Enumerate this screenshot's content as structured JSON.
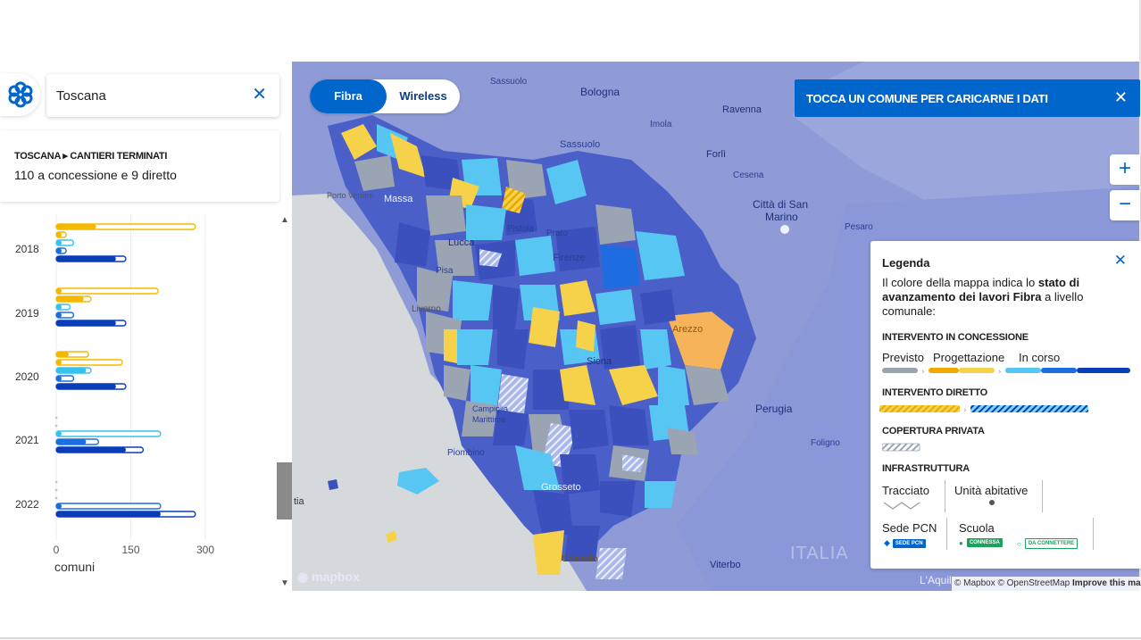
{
  "search": {
    "value": "Toscana",
    "clear_icon": "close-icon"
  },
  "info": {
    "breadcrumb": "TOSCANA ▸ CANTIERI TERMINATI",
    "summary": "110 a concessione e 9 diretto"
  },
  "chart_data": {
    "type": "bar",
    "orientation": "horizontal",
    "categories": [
      "2018",
      "2019",
      "2020",
      "2021",
      "2022"
    ],
    "x_ticks": [
      "0",
      "150",
      "300"
    ],
    "x_label": "comuni",
    "xlim": [
      0,
      300
    ],
    "series": [
      {
        "color": "#f5b800",
        "values": [
          [
            28,
            80,
            280
          ],
          [
            8,
            10,
            205
          ],
          [
            8,
            25,
            65
          ],
          [
            0,
            0,
            0
          ],
          [
            0,
            0,
            0
          ]
        ]
      },
      {
        "color": "#f5b800",
        "values": [
          [
            5,
            5,
            20
          ],
          [
            5,
            55,
            70
          ],
          [
            5,
            5,
            133
          ],
          [
            0,
            0,
            0
          ],
          [
            0,
            0,
            0
          ]
        ]
      },
      {
        "color": "#35c2ef",
        "values": [
          [
            5,
            10,
            35
          ],
          [
            5,
            5,
            28
          ],
          [
            5,
            60,
            70
          ],
          [
            5,
            10,
            210
          ],
          [
            0,
            0,
            0
          ]
        ]
      },
      {
        "color": "#1a6fe0",
        "values": [
          [
            5,
            5,
            20
          ],
          [
            5,
            5,
            35
          ],
          [
            5,
            10,
            35
          ],
          [
            5,
            60,
            85
          ],
          [
            5,
            5,
            210
          ]
        ]
      },
      {
        "color": "#0a3db8",
        "values": [
          [
            5,
            120,
            140
          ],
          [
            5,
            120,
            140
          ],
          [
            5,
            120,
            140
          ],
          [
            5,
            140,
            175
          ],
          [
            5,
            210,
            280
          ]
        ]
      }
    ],
    "grid": "vertical"
  },
  "toggle": {
    "fibra": "Fibra",
    "wireless": "Wireless",
    "selected": "Fibra"
  },
  "banner": {
    "text": "TOCCA UN COMUNE PER CARICARNE I DATI"
  },
  "zoom": {
    "in": "+",
    "out": "−"
  },
  "map": {
    "labels": [
      "Sassuolo",
      "Bologna",
      "Imola",
      "Ravenna",
      "Forlì",
      "Cesena",
      "Città di San",
      "Marino",
      "Pesaro",
      "Porto Venere",
      "Massa",
      "Lucca",
      "Pistoia",
      "Prato",
      "Firenze",
      "Pisa",
      "Livorno",
      "Arezzo",
      "Siena",
      "Perugia",
      "Foligno",
      "Campiglia",
      "Marittima",
      "Piombino",
      "Grosseto",
      "Orbetello",
      "Viterbo",
      "ITALIA",
      "tia",
      "L'Aquil"
    ],
    "brand": "mapbox",
    "attribution": "© Mapbox © OpenStreetMap",
    "improve": "Improve this map"
  },
  "legend": {
    "title": "Legenda",
    "desc_1": "Il colore della mappa indica lo ",
    "desc_bold": "stato di avanzamento dei lavori Fibra",
    "desc_2": " a livello comunale:",
    "h_concessione": "INTERVENTO IN CONCESSIONE",
    "previsto": "Previsto",
    "progettazione": "Progettazione",
    "in_corso": "In corso",
    "h_diretto": "INTERVENTO DIRETTO",
    "h_privata": "COPERTURA PRIVATA",
    "h_infra": "INFRASTRUTTURA",
    "tracciato": "Tracciato",
    "unita": "Unità abitative",
    "sede": "Sede PCN",
    "sede_chip": "SEDE PCN",
    "scuola": "Scuola",
    "connessa": "CONNESSA",
    "da_connettere": "DA CONNETTERE"
  }
}
